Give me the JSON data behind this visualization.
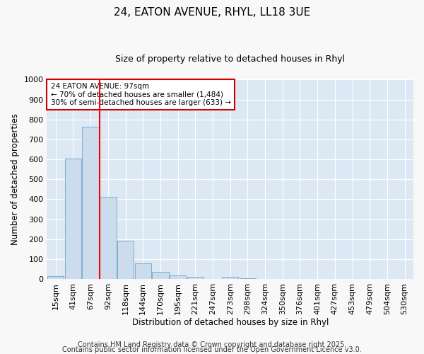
{
  "title": "24, EATON AVENUE, RHYL, LL18 3UE",
  "subtitle": "Size of property relative to detached houses in Rhyl",
  "xlabel": "Distribution of detached houses by size in Rhyl",
  "ylabel": "Number of detached properties",
  "bar_labels": [
    "15sqm",
    "41sqm",
    "67sqm",
    "92sqm",
    "118sqm",
    "144sqm",
    "170sqm",
    "195sqm",
    "221sqm",
    "247sqm",
    "273sqm",
    "298sqm",
    "324sqm",
    "350sqm",
    "376sqm",
    "401sqm",
    "427sqm",
    "453sqm",
    "479sqm",
    "504sqm",
    "530sqm"
  ],
  "bar_values": [
    15,
    605,
    765,
    413,
    193,
    78,
    37,
    17,
    12,
    0,
    12,
    5,
    0,
    0,
    0,
    0,
    0,
    0,
    0,
    0,
    0
  ],
  "bar_color": "#cddcec",
  "bar_edge_color": "#7aafd4",
  "bg_color": "#dde8f5",
  "grid_color": "#ffffff",
  "red_line_x": 2.5,
  "ylim": [
    0,
    1000
  ],
  "annotation_line1": "24 EATON AVENUE: 97sqm",
  "annotation_line2": "← 70% of detached houses are smaller (1,484)",
  "annotation_line3": "30% of semi-detached houses are larger (633) →",
  "annotation_box_color": "#ffffff",
  "annotation_box_edge": "#cc0000",
  "footer1": "Contains HM Land Registry data © Crown copyright and database right 2025.",
  "footer2": "Contains public sector information licensed under the Open Government Licence v3.0.",
  "fig_bg": "#f8f8f8",
  "title_fontsize": 11,
  "subtitle_fontsize": 9,
  "axis_label_fontsize": 8.5,
  "tick_fontsize": 8,
  "footer_fontsize": 7
}
